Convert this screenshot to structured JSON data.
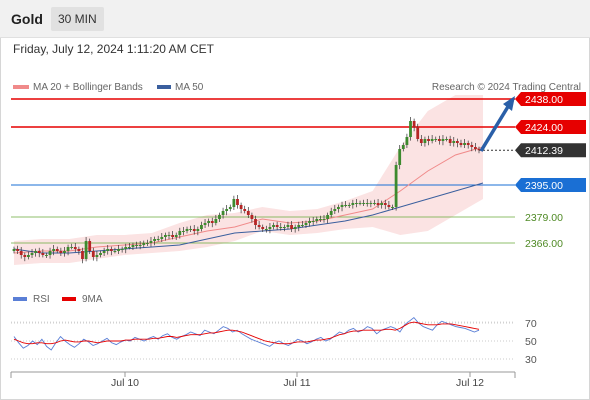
{
  "header": {
    "instrument": "Gold",
    "timeframe": "30 MIN"
  },
  "subheader": {
    "datetime": "Friday, July 12, 2024 1:11:20 AM CET"
  },
  "legend": {
    "ma20": "MA 20 + Bollinger Bands",
    "ma50": "MA 50",
    "credit": "Research © 2024 Trading Central",
    "rsi": "RSI",
    "ma9": "9MA"
  },
  "colors": {
    "resistance": "#e60000",
    "support": "#1a6fd4",
    "minor_support": "#6aaa3a",
    "last_price": "#333333",
    "ma20": "#f08a8a",
    "ma50": "#3a5f9e",
    "bollinger_fill": "#fbe3e3",
    "candle_up": "#3d8a2e",
    "candle_down": "#b52525",
    "rsi": "#5a7fd6",
    "rsi_ma": "#e60000",
    "arrow": "#2a5fa8"
  },
  "chart_data": {
    "type": "candlestick",
    "instrument": "Gold",
    "timeframe": "30 MIN",
    "ylim": [
      2340,
      2450
    ],
    "x_ticks": [
      "Jul 10",
      "Jul 11",
      "Jul 12"
    ],
    "levels": [
      {
        "value": 2438.0,
        "label": "2438.00",
        "kind": "resistance"
      },
      {
        "value": 2424.0,
        "label": "2424.00",
        "kind": "resistance"
      },
      {
        "value": 2412.39,
        "label": "2412.39",
        "kind": "last_price"
      },
      {
        "value": 2395.0,
        "label": "2395.00",
        "kind": "support"
      },
      {
        "value": 2379.0,
        "label": "2379.00",
        "kind": "minor_support"
      },
      {
        "value": 2366.0,
        "label": "2366.00",
        "kind": "minor_support"
      }
    ],
    "closes": [
      2363,
      2362,
      2360,
      2359,
      2360,
      2361,
      2362,
      2361,
      2360,
      2360,
      2362,
      2363,
      2362,
      2361,
      2362,
      2364,
      2364,
      2363,
      2362,
      2358,
      2367,
      2362,
      2359,
      2360,
      2361,
      2362,
      2363,
      2362,
      2362,
      2363,
      2363,
      2364,
      2364,
      2365,
      2365,
      2365,
      2366,
      2366,
      2367,
      2368,
      2368,
      2369,
      2370,
      2370,
      2369,
      2370,
      2372,
      2372,
      2373,
      2373,
      2372,
      2373,
      2375,
      2376,
      2377,
      2376,
      2378,
      2380,
      2382,
      2383,
      2384,
      2388,
      2385,
      2383,
      2382,
      2380,
      2378,
      2375,
      2374,
      2373,
      2373,
      2374,
      2375,
      2374,
      2374,
      2374,
      2375,
      2373,
      2374,
      2375,
      2375,
      2376,
      2377,
      2377,
      2378,
      2378,
      2378,
      2380,
      2382,
      2383,
      2384,
      2385,
      2385,
      2385,
      2386,
      2386,
      2386,
      2386,
      2386,
      2386,
      2386,
      2385,
      2386,
      2385,
      2384,
      2384,
      2405,
      2413,
      2415,
      2419,
      2427,
      2424,
      2418,
      2416,
      2418,
      2417,
      2418,
      2418,
      2417,
      2418,
      2418,
      2416,
      2417,
      2416,
      2415,
      2416,
      2415,
      2414,
      2413,
      2412.39
    ],
    "ma20_curve": [
      2361,
      2362,
      2362,
      2364,
      2365,
      2366,
      2369,
      2372,
      2374,
      2378,
      2376,
      2377,
      2380,
      2383,
      2392,
      2402,
      2410,
      2414
    ],
    "ma50_curve": [
      2363,
      2361,
      2361,
      2362,
      2363,
      2364,
      2365,
      2368,
      2371,
      2372,
      2373,
      2375,
      2377,
      2380,
      2384,
      2388,
      2392,
      2396
    ],
    "projection": {
      "from": 2412,
      "to": 2438
    },
    "rsi": {
      "ylim": [
        20,
        80
      ],
      "levels": [
        70,
        50,
        30
      ],
      "rsi_values": [
        55,
        48,
        42,
        45,
        50,
        46,
        52,
        44,
        40,
        48,
        55,
        50,
        46,
        43,
        47,
        52,
        49,
        45,
        47,
        50,
        53,
        48,
        46,
        49,
        51,
        50,
        54,
        52,
        50,
        53,
        55,
        52,
        56,
        58,
        54,
        52,
        55,
        57,
        60,
        58,
        56,
        62,
        60,
        58,
        62,
        66,
        64,
        60,
        62,
        58,
        55,
        52,
        50,
        48,
        46,
        44,
        48,
        50,
        47,
        45,
        48,
        52,
        50,
        47,
        49,
        52,
        54,
        50,
        52,
        56,
        60,
        58,
        62,
        64,
        60,
        62,
        66,
        64,
        58,
        62,
        64,
        66,
        64,
        60,
        68,
        72,
        76,
        70,
        66,
        64,
        62,
        68,
        72,
        70,
        68,
        66,
        65,
        64,
        62,
        60,
        62
      ],
      "ma9_values": [
        52,
        50,
        48,
        47,
        47,
        48,
        48,
        47,
        47,
        48,
        50,
        51,
        50,
        49,
        49,
        50,
        50,
        49,
        48,
        49,
        50,
        50,
        50,
        50,
        51,
        51,
        52,
        52,
        52,
        52,
        53,
        53,
        54,
        55,
        55,
        54,
        55,
        56,
        57,
        57,
        57,
        58,
        59,
        59,
        60,
        61,
        62,
        62,
        61,
        60,
        58,
        56,
        54,
        52,
        50,
        49,
        48,
        47,
        47,
        47,
        48,
        49,
        49,
        49,
        50,
        51,
        51,
        52,
        53,
        55,
        57,
        58,
        60,
        61,
        61,
        62,
        62,
        62,
        62,
        62,
        63,
        63,
        62,
        64,
        67,
        70,
        71,
        70,
        69,
        68,
        68,
        68,
        69,
        69,
        69,
        68,
        67,
        66,
        65,
        64,
        63
      ]
    }
  }
}
